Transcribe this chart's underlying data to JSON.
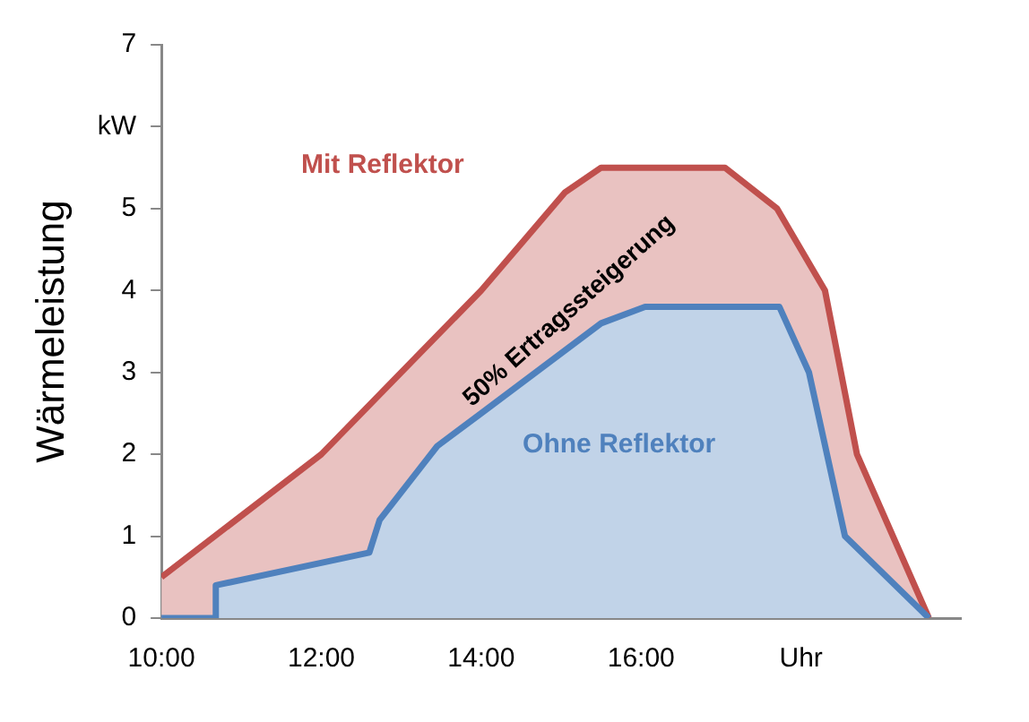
{
  "chart_data": {
    "type": "area",
    "ylabel": "Wärmeleistung",
    "xlim": [
      10,
      20
    ],
    "xticks": [
      {
        "value": 10,
        "label": "10:00"
      },
      {
        "value": 12,
        "label": "12:00"
      },
      {
        "value": 14,
        "label": "14:00"
      },
      {
        "value": 16,
        "label": "16:00"
      },
      {
        "value": 18,
        "label": "Uhr"
      }
    ],
    "ylim": [
      0,
      7
    ],
    "yticks": [
      0,
      1,
      2,
      3,
      4,
      5,
      {
        "value": 6,
        "label": "kW"
      },
      7
    ],
    "grid": false,
    "legend": false,
    "marker": "none",
    "line_style": "solid",
    "series": [
      {
        "name": "Mit Reflektor",
        "color": "#c0504d",
        "x": [
          10,
          12,
          14,
          15.05,
          15.5,
          17.05,
          17.7,
          18.3,
          18.7,
          19.6
        ],
        "values": [
          0.5,
          2,
          4,
          5.2,
          5.5,
          5.5,
          5,
          4,
          2,
          0
        ]
      },
      {
        "name": "Ohne Reflektor",
        "color": "#4f81bd",
        "x": [
          10,
          10.68,
          10.68,
          12.6,
          12.73,
          13.45,
          14,
          15.5,
          16.05,
          17.73,
          18.1,
          18.55,
          19.6
        ],
        "values": [
          0,
          0,
          0.4,
          0.8,
          1.2,
          2.1,
          2.5,
          3.6,
          3.8,
          3.8,
          3,
          1,
          0
        ]
      }
    ],
    "annotations": [
      "50% Ertragssteigerung"
    ]
  }
}
